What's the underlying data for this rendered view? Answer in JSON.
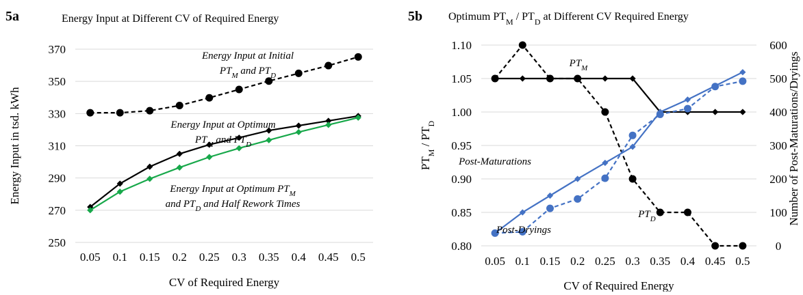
{
  "chart_data": [
    {
      "panel_label": "5a",
      "type": "line",
      "title": "Energy Input at Different CV of Required Energy",
      "xlabel": "CV of Required Energy",
      "ylabel": "Energy Input in tsd. kWh",
      "categories": [
        "0.05",
        "0.1",
        "0.15",
        "0.2",
        "0.25",
        "0.3",
        "0.35",
        "0.4",
        "0.45",
        "0.5"
      ],
      "ylim": [
        250,
        370
      ],
      "yticks": [
        "250",
        "270",
        "290",
        "310",
        "330",
        "350",
        "370"
      ],
      "grid": "horizontal",
      "series": [
        {
          "name": "Energy Input at Initial PT_M and PT_D",
          "label_lines": [
            {
              "parts": [
                {
                  "t": "Energy Input at Initial"
                }
              ]
            },
            {
              "parts": [
                {
                  "t": "PT"
                },
                {
                  "t": "M",
                  "sub": true
                },
                {
                  "t": " and PT"
                },
                {
                  "t": "D",
                  "sub": true
                }
              ]
            }
          ],
          "color": "#000000",
          "style": "dashed",
          "marker": "circle",
          "values": [
            330.5,
            330.5,
            331.8,
            335,
            339.8,
            345,
            350.2,
            355,
            359.8,
            365.2
          ]
        },
        {
          "name": "Energy Input at Optimum PT_M and PT_D",
          "label_lines": [
            {
              "parts": [
                {
                  "t": "Energy Input at Optimum"
                }
              ]
            },
            {
              "parts": [
                {
                  "t": "PT"
                },
                {
                  "t": "M",
                  "sub": true
                },
                {
                  "t": " and PT"
                },
                {
                  "t": "D",
                  "sub": true
                }
              ]
            }
          ],
          "color": "#000000",
          "style": "solid",
          "marker": "diamond",
          "values": [
            272,
            286.5,
            297,
            305,
            310.7,
            315,
            319.5,
            322.5,
            325.5,
            328.5
          ]
        },
        {
          "name": "Energy Input at Optimum PT_M and PT_D and Half Rework Times",
          "label_lines": [
            {
              "parts": [
                {
                  "t": "Energy Input at Optimum PT"
                },
                {
                  "t": "M",
                  "sub": true
                }
              ]
            },
            {
              "parts": [
                {
                  "t": "and PT"
                },
                {
                  "t": "D",
                  "sub": true
                },
                {
                  "t": " and Half Rework Times"
                }
              ]
            }
          ],
          "color": "#17a84a",
          "style": "solid",
          "marker": "diamond",
          "values": [
            270,
            281.5,
            289.5,
            296.5,
            303,
            308.5,
            313.5,
            318.5,
            323,
            327.5
          ]
        }
      ]
    },
    {
      "panel_label": "5b",
      "type": "line",
      "title_parts": [
        {
          "t": "Optimum PT"
        },
        {
          "t": "M",
          "sub": true
        },
        {
          "t": " / PT"
        },
        {
          "t": "D",
          "sub": true
        },
        {
          "t": " at Different CV Required Energy"
        }
      ],
      "xlabel": "CV of Required Energy",
      "ylabel_left_parts": [
        {
          "t": "PT"
        },
        {
          "t": "M",
          "sub": true
        },
        {
          "t": " / PT"
        },
        {
          "t": "D",
          "sub": true
        }
      ],
      "ylabel_right": "Number of Post-Maturations/Dryings",
      "categories": [
        "0.05",
        "0.1",
        "0.15",
        "0.2",
        "0.25",
        "0.3",
        "0.35",
        "0.4",
        "0.45",
        "0.5"
      ],
      "ylim_left": [
        0.8,
        1.1
      ],
      "yticks_left": [
        "0.80",
        "0.85",
        "0.90",
        "0.95",
        "1.00",
        "1.05",
        "1.10"
      ],
      "ylim_right": [
        0,
        600
      ],
      "yticks_right": [
        "0",
        "100",
        "200",
        "300",
        "400",
        "500",
        "600"
      ],
      "grid": "horizontal",
      "series": [
        {
          "name": "PT_M",
          "axis": "left",
          "label_parts": [
            {
              "t": "PT"
            },
            {
              "t": "M",
              "sub": true
            }
          ],
          "color": "#000000",
          "style": "solid",
          "marker": "diamond",
          "values": [
            1.05,
            1.05,
            1.05,
            1.05,
            1.05,
            1.05,
            1.0,
            1.0,
            1.0,
            1.0
          ]
        },
        {
          "name": "PT_D",
          "axis": "left",
          "label_parts": [
            {
              "t": "PT"
            },
            {
              "t": "D",
              "sub": true
            }
          ],
          "color": "#000000",
          "style": "dashed",
          "marker": "circle",
          "values": [
            1.05,
            1.1,
            1.05,
            1.05,
            1.0,
            0.9,
            0.85,
            0.85,
            0.8,
            0.8
          ]
        },
        {
          "name": "Post-Maturations",
          "axis": "right",
          "label_parts": [
            {
              "t": "Post-Maturations"
            }
          ],
          "color": "#4472c4",
          "style": "solid",
          "marker": "diamond",
          "values": [
            38,
            100,
            150,
            200,
            248,
            296,
            400,
            437,
            478,
            519
          ]
        },
        {
          "name": "Post-Dryings",
          "axis": "right",
          "label_parts": [
            {
              "t": "Post-Dryings"
            }
          ],
          "color": "#4472c4",
          "style": "dashed",
          "marker": "circle",
          "values": [
            38,
            42,
            112,
            140,
            202,
            330,
            393,
            410,
            476,
            492
          ]
        }
      ]
    }
  ]
}
